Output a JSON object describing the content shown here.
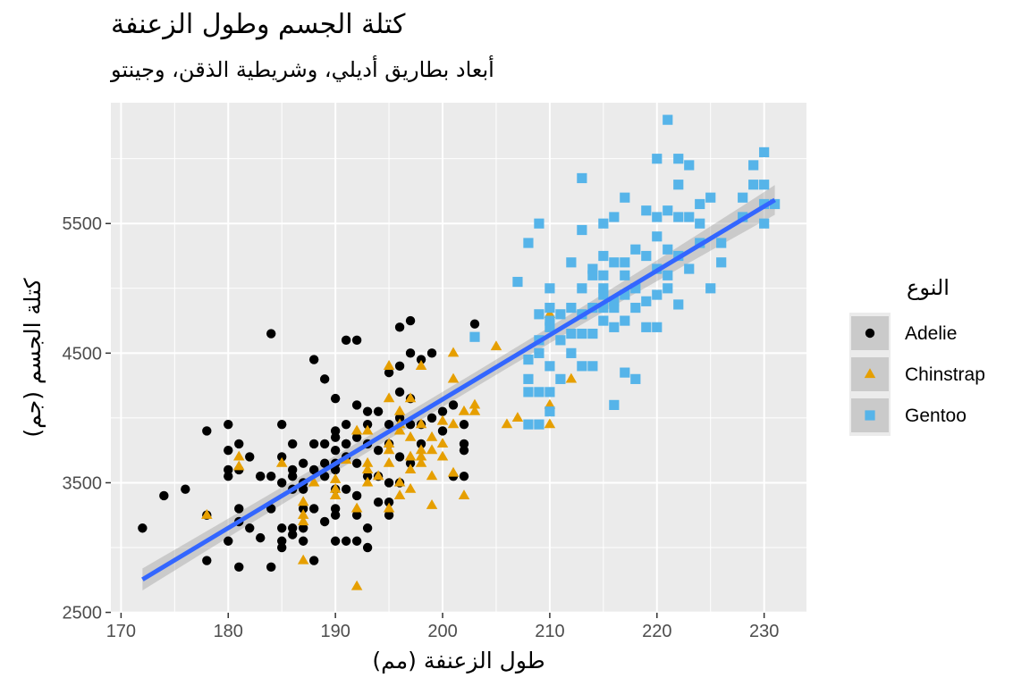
{
  "chart_data": {
    "type": "scatter",
    "title": "كتلة الجسم وطول الزعنفة",
    "subtitle": "أبعاد بطاريق أديلي، وشريطية الذقن، وجينتو",
    "xlabel": "طول الزعنفة (مم)",
    "ylabel": "كتلة الجسم (جم)",
    "xlim": [
      169.05,
      233.95
    ],
    "ylim": [
      2497,
      6432
    ],
    "x_ticks": [
      170,
      180,
      190,
      200,
      210,
      220,
      230
    ],
    "y_ticks": [
      2500,
      3500,
      4500,
      5500
    ],
    "x_tick_labels": [
      "170",
      "180",
      "190",
      "200",
      "210",
      "220",
      "230"
    ],
    "y_tick_labels": [
      "2500",
      "3500",
      "4500",
      "5500"
    ],
    "grid": true,
    "legend": {
      "title": "النوع",
      "position": "right"
    },
    "series": [
      {
        "name": "Adelie",
        "color": "#000000",
        "marker": "circle",
        "points": [
          [
            172,
            3150
          ],
          [
            174,
            3400
          ],
          [
            176,
            3450
          ],
          [
            178,
            3900
          ],
          [
            178,
            2900
          ],
          [
            178,
            3250
          ],
          [
            180,
            3950
          ],
          [
            180,
            3750
          ],
          [
            180,
            3600
          ],
          [
            180,
            3550
          ],
          [
            180,
            3050
          ],
          [
            181,
            3800
          ],
          [
            181,
            3600
          ],
          [
            181,
            3300
          ],
          [
            181,
            3200
          ],
          [
            181,
            2850
          ],
          [
            182,
            3700
          ],
          [
            182,
            3150
          ],
          [
            183,
            3550
          ],
          [
            183,
            3075
          ],
          [
            184,
            4650
          ],
          [
            184,
            3550
          ],
          [
            184,
            3300
          ],
          [
            184,
            2850
          ],
          [
            185,
            3950
          ],
          [
            185,
            3700
          ],
          [
            185,
            3500
          ],
          [
            185,
            3150
          ],
          [
            185,
            3050
          ],
          [
            185,
            3000
          ],
          [
            186,
            3800
          ],
          [
            186,
            3550
          ],
          [
            186,
            3450
          ],
          [
            186,
            3150
          ],
          [
            186,
            3100
          ],
          [
            187,
            3650
          ],
          [
            187,
            3500
          ],
          [
            187,
            3300
          ],
          [
            187,
            3150
          ],
          [
            187,
            3050
          ],
          [
            188,
            4450
          ],
          [
            188,
            3800
          ],
          [
            188,
            3600
          ],
          [
            188,
            3300
          ],
          [
            188,
            2900
          ],
          [
            189,
            4300
          ],
          [
            189,
            3800
          ],
          [
            189,
            3550
          ],
          [
            189,
            3200
          ],
          [
            190,
            4150
          ],
          [
            190,
            3850
          ],
          [
            190,
            3650
          ],
          [
            190,
            3450
          ],
          [
            190,
            3250
          ],
          [
            190,
            3050
          ],
          [
            190,
            3900
          ],
          [
            190,
            3750
          ],
          [
            190,
            3600
          ],
          [
            190,
            3300
          ],
          [
            191,
            4600
          ],
          [
            191,
            3950
          ],
          [
            191,
            3800
          ],
          [
            191,
            3700
          ],
          [
            191,
            3450
          ],
          [
            191,
            3050
          ],
          [
            191,
            3800
          ],
          [
            192,
            4600
          ],
          [
            192,
            4100
          ],
          [
            192,
            3850
          ],
          [
            192,
            3650
          ],
          [
            192,
            3400
          ],
          [
            192,
            3050
          ],
          [
            193,
            4050
          ],
          [
            193,
            3950
          ],
          [
            193,
            3800
          ],
          [
            193,
            3550
          ],
          [
            193,
            3000
          ],
          [
            193,
            3150
          ],
          [
            194,
            4050
          ],
          [
            194,
            3750
          ],
          [
            194,
            3550
          ],
          [
            194,
            3350
          ],
          [
            195,
            4350
          ],
          [
            195,
            3800
          ],
          [
            195,
            3250
          ],
          [
            195,
            3350
          ],
          [
            195,
            3500
          ],
          [
            195,
            3950
          ],
          [
            196,
            4700
          ],
          [
            196,
            4200
          ],
          [
            196,
            4000
          ],
          [
            196,
            3700
          ],
          [
            196,
            3500
          ],
          [
            196,
            4400
          ],
          [
            197,
            4750
          ],
          [
            197,
            4500
          ],
          [
            197,
            4150
          ],
          [
            197,
            3950
          ],
          [
            197,
            3650
          ],
          [
            198,
            4450
          ],
          [
            198,
            3950
          ],
          [
            198,
            3800
          ],
          [
            199,
            4500
          ],
          [
            199,
            4000
          ],
          [
            200,
            4050
          ],
          [
            200,
            3900
          ],
          [
            201,
            4100
          ],
          [
            201,
            3550
          ],
          [
            202,
            3950
          ],
          [
            202,
            3800
          ],
          [
            202,
            3550
          ],
          [
            202,
            3750
          ],
          [
            203,
            4725
          ],
          [
            183,
            3550
          ],
          [
            186,
            3600
          ],
          [
            189,
            3650
          ],
          [
            192,
            3250
          ],
          [
            187,
            3450
          ]
        ]
      },
      {
        "name": "Chinstrap",
        "color": "#E69F00",
        "marker": "triangle",
        "points": [
          [
            178,
            3250
          ],
          [
            181,
            3700
          ],
          [
            181,
            3625
          ],
          [
            185,
            3650
          ],
          [
            187,
            3250
          ],
          [
            187,
            3350
          ],
          [
            187,
            2900
          ],
          [
            187,
            3200
          ],
          [
            188,
            3500
          ],
          [
            190,
            3450
          ],
          [
            190,
            3400
          ],
          [
            190,
            3525
          ],
          [
            191,
            3675
          ],
          [
            192,
            3900
          ],
          [
            192,
            3300
          ],
          [
            192,
            2700
          ],
          [
            193,
            3650
          ],
          [
            193,
            3900
          ],
          [
            193,
            3500
          ],
          [
            194,
            3550
          ],
          [
            195,
            3750
          ],
          [
            195,
            4150
          ],
          [
            195,
            3800
          ],
          [
            195,
            4400
          ],
          [
            195,
            3300
          ],
          [
            196,
            3950
          ],
          [
            196,
            3500
          ],
          [
            196,
            3900
          ],
          [
            196,
            4050
          ],
          [
            197,
            3450
          ],
          [
            197,
            3850
          ],
          [
            197,
            3700
          ],
          [
            197,
            4150
          ],
          [
            197,
            3600
          ],
          [
            198,
            3750
          ],
          [
            198,
            3950
          ],
          [
            198,
            3700
          ],
          [
            198,
            3650
          ],
          [
            198,
            4400
          ],
          [
            199,
            3325
          ],
          [
            199,
            3850
          ],
          [
            199,
            3750
          ],
          [
            199,
            3550
          ],
          [
            200,
            3800
          ],
          [
            200,
            3700
          ],
          [
            200,
            3975
          ],
          [
            201,
            4500
          ],
          [
            201,
            4300
          ],
          [
            201,
            3950
          ],
          [
            201,
            3575
          ],
          [
            202,
            4050
          ],
          [
            202,
            3400
          ],
          [
            203,
            4050
          ],
          [
            203,
            4100
          ],
          [
            205,
            4550
          ],
          [
            206,
            3950
          ],
          [
            207,
            4000
          ],
          [
            210,
            4800
          ],
          [
            210,
            3950
          ],
          [
            210,
            4100
          ],
          [
            212,
            4300
          ],
          [
            196,
            3400
          ],
          [
            193,
            3600
          ],
          [
            195,
            3650
          ]
        ]
      },
      {
        "name": "Gentoo",
        "color": "#56B4E9",
        "marker": "square",
        "points": [
          [
            203,
            4625
          ],
          [
            207,
            5050
          ],
          [
            208,
            5350
          ],
          [
            208,
            4450
          ],
          [
            208,
            4200
          ],
          [
            208,
            4300
          ],
          [
            208,
            3950
          ],
          [
            209,
            5500
          ],
          [
            209,
            4800
          ],
          [
            209,
            4600
          ],
          [
            209,
            4200
          ],
          [
            209,
            3950
          ],
          [
            209,
            4500
          ],
          [
            210,
            5000
          ],
          [
            210,
            4750
          ],
          [
            210,
            4700
          ],
          [
            210,
            4400
          ],
          [
            210,
            4200
          ],
          [
            210,
            4050
          ],
          [
            210,
            4850
          ],
          [
            211,
            4800
          ],
          [
            211,
            4600
          ],
          [
            211,
            4300
          ],
          [
            212,
            5200
          ],
          [
            212,
            4650
          ],
          [
            212,
            4500
          ],
          [
            212,
            4850
          ],
          [
            213,
            5850
          ],
          [
            213,
            5450
          ],
          [
            213,
            5000
          ],
          [
            213,
            4800
          ],
          [
            213,
            4650
          ],
          [
            213,
            4400
          ],
          [
            214,
            5150
          ],
          [
            214,
            4850
          ],
          [
            214,
            4650
          ],
          [
            214,
            4400
          ],
          [
            215,
            5500
          ],
          [
            215,
            5250
          ],
          [
            215,
            5100
          ],
          [
            215,
            4950
          ],
          [
            215,
            4850
          ],
          [
            215,
            4750
          ],
          [
            215,
            5000
          ],
          [
            216,
            5200
          ],
          [
            216,
            4900
          ],
          [
            216,
            4850
          ],
          [
            216,
            4700
          ],
          [
            216,
            4100
          ],
          [
            216,
            5550
          ],
          [
            217,
            5200
          ],
          [
            217,
            5100
          ],
          [
            217,
            4950
          ],
          [
            217,
            4750
          ],
          [
            217,
            5700
          ],
          [
            217,
            4350
          ],
          [
            218,
            5300
          ],
          [
            218,
            5000
          ],
          [
            218,
            4850
          ],
          [
            218,
            4300
          ],
          [
            219,
            5250
          ],
          [
            219,
            4900
          ],
          [
            219,
            4700
          ],
          [
            220,
            6000
          ],
          [
            220,
            5550
          ],
          [
            220,
            5400
          ],
          [
            220,
            5150
          ],
          [
            220,
            4950
          ],
          [
            220,
            4700
          ],
          [
            221,
            6300
          ],
          [
            221,
            5600
          ],
          [
            221,
            5300
          ],
          [
            221,
            5100
          ],
          [
            221,
            5000
          ],
          [
            222,
            6000
          ],
          [
            222,
            5550
          ],
          [
            222,
            5250
          ],
          [
            222,
            4875
          ],
          [
            223,
            5950
          ],
          [
            223,
            5550
          ],
          [
            223,
            5150
          ],
          [
            224,
            5650
          ],
          [
            224,
            5350
          ],
          [
            225,
            5700
          ],
          [
            225,
            5000
          ],
          [
            226,
            5200
          ],
          [
            228,
            5550
          ],
          [
            228,
            5700
          ],
          [
            229,
            5950
          ],
          [
            229,
            5800
          ],
          [
            230,
            6050
          ],
          [
            230,
            5800
          ],
          [
            230,
            5650
          ],
          [
            230,
            5500
          ],
          [
            231,
            5650
          ],
          [
            222,
            5800
          ],
          [
            224,
            5500
          ],
          [
            226,
            5350
          ],
          [
            219,
            5600
          ],
          [
            214,
            5100
          ]
        ]
      }
    ],
    "trend_line": {
      "type": "linear",
      "color": "#3366FF",
      "x": [
        172,
        231
      ],
      "y": [
        2754,
        5682
      ],
      "band_halfwidth": [
        85,
        58,
        115
      ]
    }
  }
}
